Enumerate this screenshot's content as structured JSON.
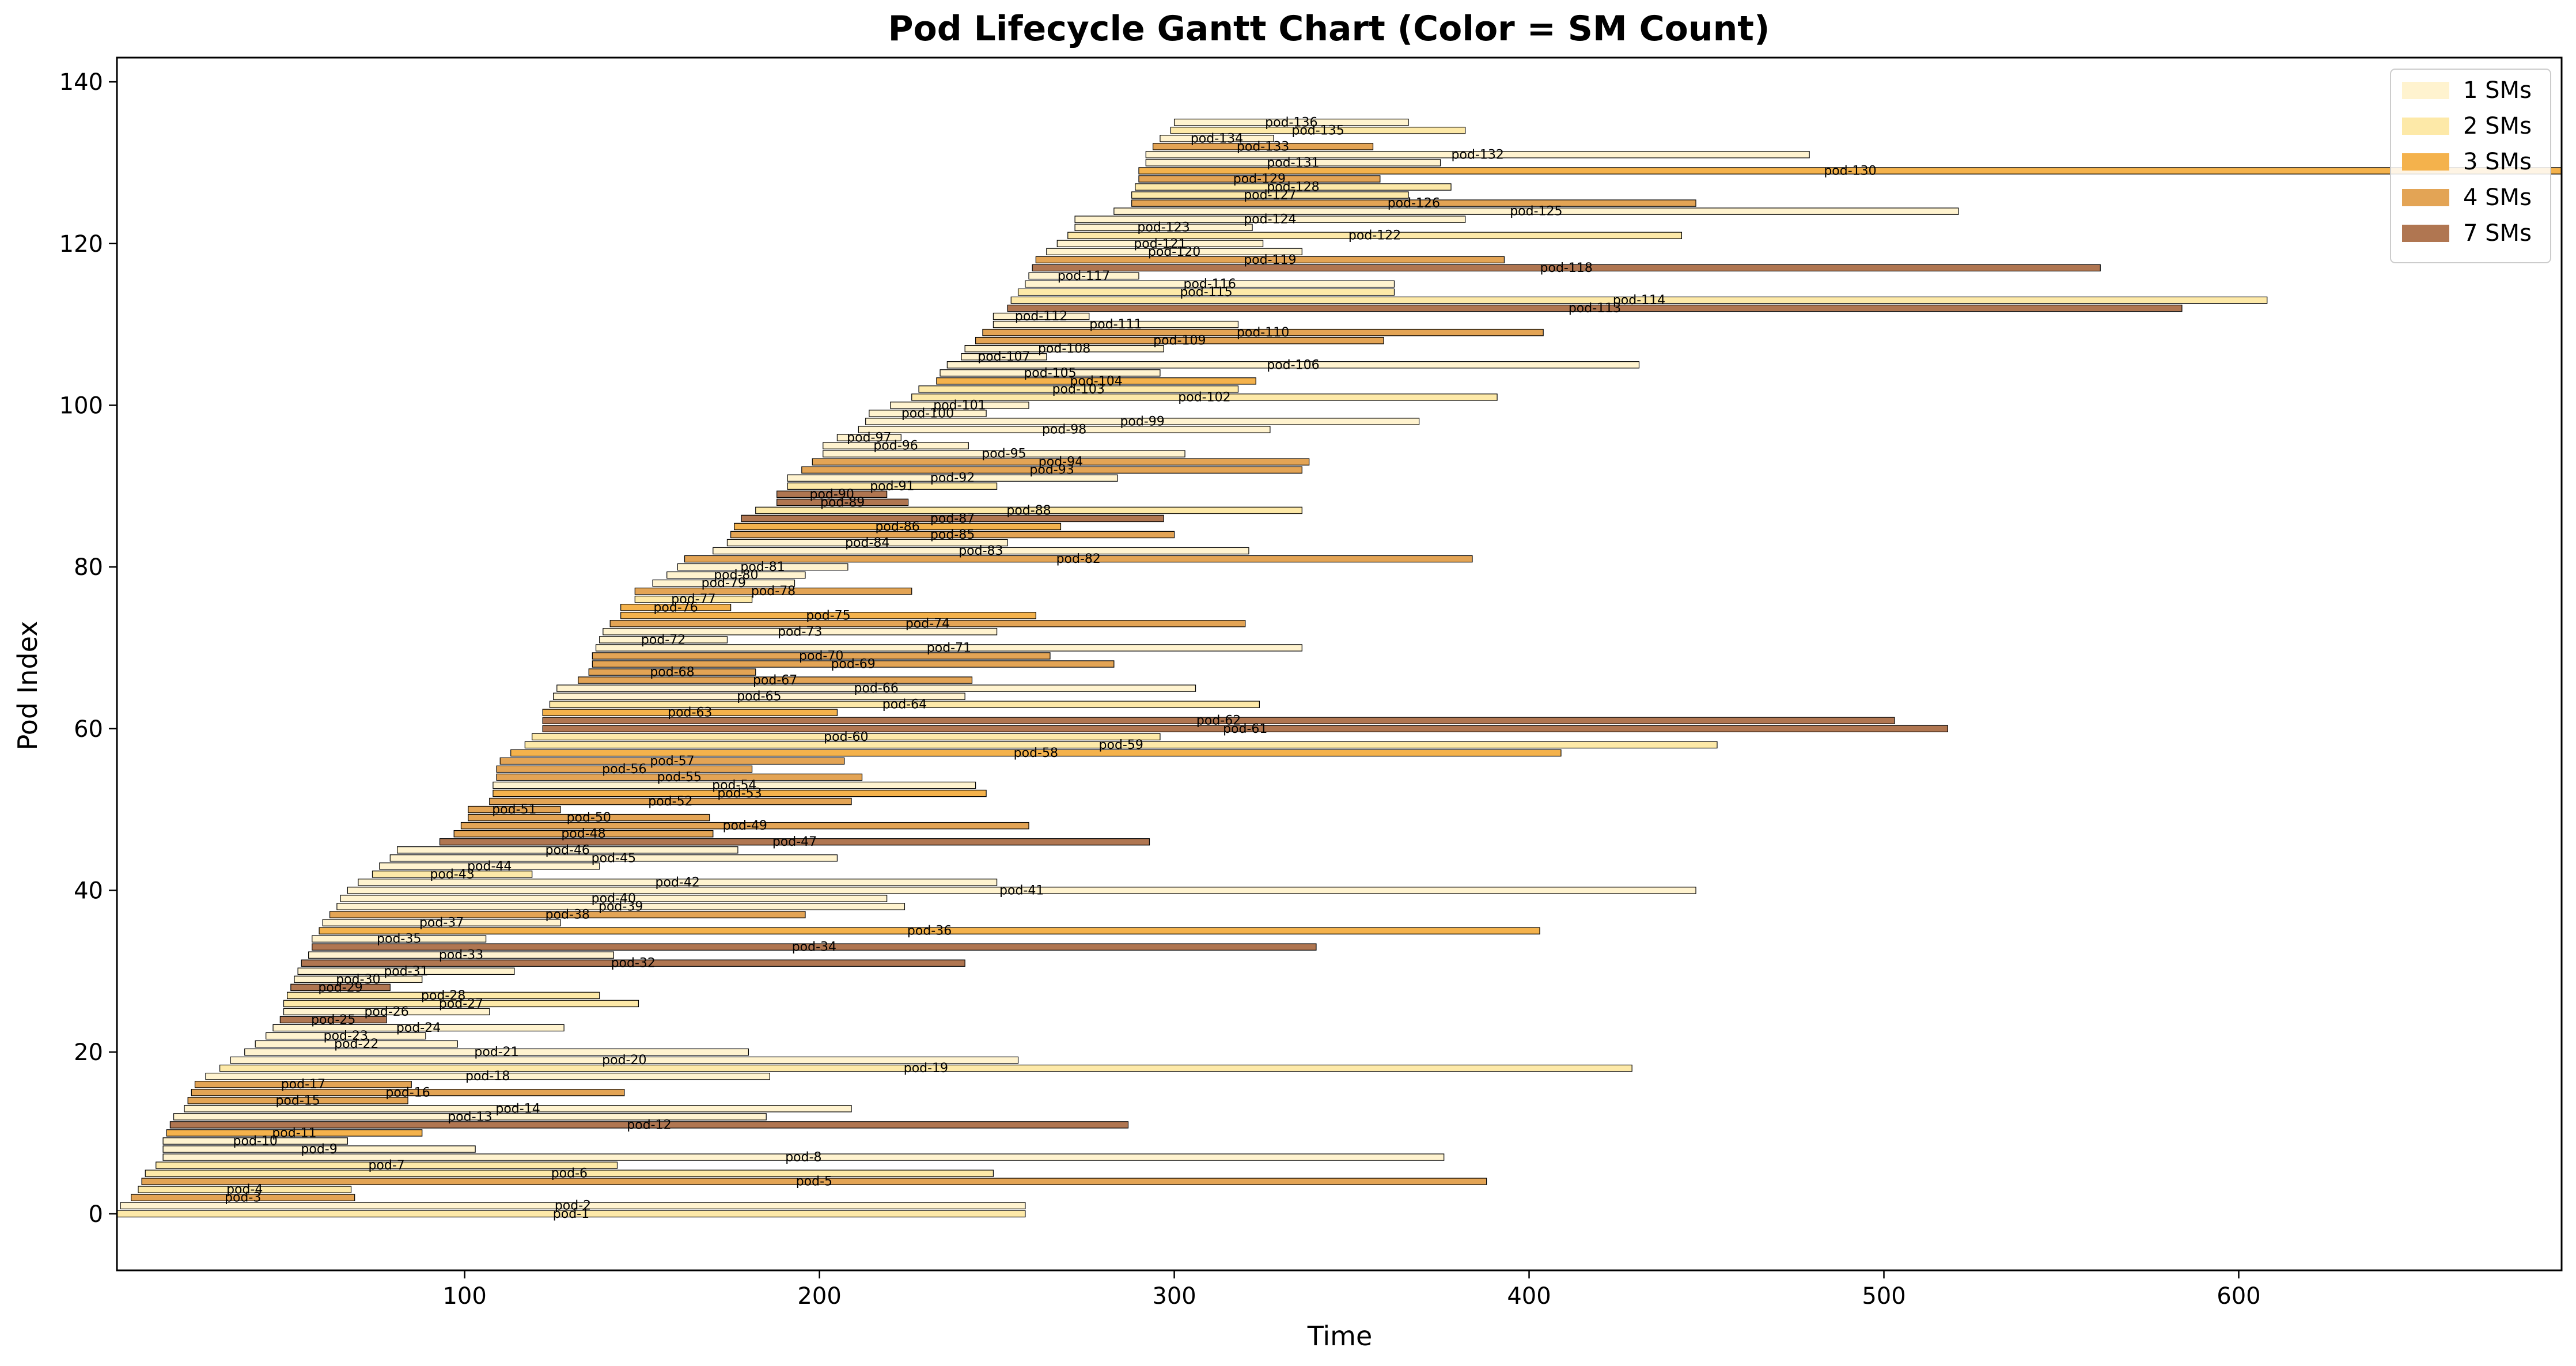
{
  "chart_data": {
    "type": "gantt",
    "title": "Pod Lifecycle Gantt Chart (Color = SM Count)",
    "xlabel": "Time",
    "ylabel": "Pod Index",
    "xlim": [
      2,
      691
    ],
    "ylim": [
      -7,
      143
    ],
    "xticks": [
      100,
      200,
      300,
      400,
      500,
      600
    ],
    "yticks": [
      0,
      20,
      40,
      60,
      80,
      100,
      120,
      140
    ],
    "grid": false,
    "legend_position": "top-right",
    "legend": [
      {
        "label": "1 SMs",
        "sm": 1,
        "color": "#fff3cf"
      },
      {
        "label": "2 SMs",
        "sm": 2,
        "color": "#fde9a8"
      },
      {
        "label": "3 SMs",
        "sm": 3,
        "color": "#f4b24c"
      },
      {
        "label": "4 SMs",
        "sm": 4,
        "color": "#e3a455"
      },
      {
        "label": "7 SMs",
        "sm": 7,
        "color": "#b07651"
      }
    ],
    "pods": [
      {
        "label": "pod-1",
        "start": 2,
        "end": 258,
        "sm": 2
      },
      {
        "label": "pod-2",
        "start": 3,
        "end": 258,
        "sm": 1
      },
      {
        "label": "pod-3",
        "start": 6,
        "end": 69,
        "sm": 4
      },
      {
        "label": "pod-4",
        "start": 8,
        "end": 68,
        "sm": 2
      },
      {
        "label": "pod-5",
        "start": 9,
        "end": 388,
        "sm": 4
      },
      {
        "label": "pod-6",
        "start": 10,
        "end": 249,
        "sm": 2
      },
      {
        "label": "pod-7",
        "start": 13,
        "end": 143,
        "sm": 2
      },
      {
        "label": "pod-8",
        "start": 15,
        "end": 376,
        "sm": 1
      },
      {
        "label": "pod-9",
        "start": 15,
        "end": 103,
        "sm": 1
      },
      {
        "label": "pod-10",
        "start": 15,
        "end": 67,
        "sm": 1
      },
      {
        "label": "pod-11",
        "start": 16,
        "end": 88,
        "sm": 3
      },
      {
        "label": "pod-12",
        "start": 17,
        "end": 287,
        "sm": 7
      },
      {
        "label": "pod-13",
        "start": 18,
        "end": 185,
        "sm": 1
      },
      {
        "label": "pod-14",
        "start": 21,
        "end": 209,
        "sm": 1
      },
      {
        "label": "pod-15",
        "start": 22,
        "end": 84,
        "sm": 4
      },
      {
        "label": "pod-16",
        "start": 23,
        "end": 145,
        "sm": 4
      },
      {
        "label": "pod-17",
        "start": 24,
        "end": 85,
        "sm": 4
      },
      {
        "label": "pod-18",
        "start": 27,
        "end": 186,
        "sm": 1
      },
      {
        "label": "pod-19",
        "start": 31,
        "end": 429,
        "sm": 2
      },
      {
        "label": "pod-20",
        "start": 34,
        "end": 256,
        "sm": 1
      },
      {
        "label": "pod-21",
        "start": 38,
        "end": 180,
        "sm": 1
      },
      {
        "label": "pod-22",
        "start": 41,
        "end": 98,
        "sm": 1
      },
      {
        "label": "pod-23",
        "start": 44,
        "end": 89,
        "sm": 1
      },
      {
        "label": "pod-24",
        "start": 46,
        "end": 128,
        "sm": 1
      },
      {
        "label": "pod-25",
        "start": 48,
        "end": 78,
        "sm": 7
      },
      {
        "label": "pod-26",
        "start": 49,
        "end": 107,
        "sm": 1
      },
      {
        "label": "pod-27",
        "start": 49,
        "end": 149,
        "sm": 2
      },
      {
        "label": "pod-28",
        "start": 50,
        "end": 138,
        "sm": 2
      },
      {
        "label": "pod-29",
        "start": 51,
        "end": 79,
        "sm": 7
      },
      {
        "label": "pod-30",
        "start": 52,
        "end": 88,
        "sm": 1
      },
      {
        "label": "pod-31",
        "start": 53,
        "end": 114,
        "sm": 1
      },
      {
        "label": "pod-32",
        "start": 54,
        "end": 241,
        "sm": 7
      },
      {
        "label": "pod-33",
        "start": 56,
        "end": 142,
        "sm": 1
      },
      {
        "label": "pod-34",
        "start": 57,
        "end": 340,
        "sm": 7
      },
      {
        "label": "pod-35",
        "start": 57,
        "end": 106,
        "sm": 1
      },
      {
        "label": "pod-36",
        "start": 59,
        "end": 403,
        "sm": 3
      },
      {
        "label": "pod-37",
        "start": 60,
        "end": 127,
        "sm": 1
      },
      {
        "label": "pod-38",
        "start": 62,
        "end": 196,
        "sm": 4
      },
      {
        "label": "pod-39",
        "start": 64,
        "end": 224,
        "sm": 1
      },
      {
        "label": "pod-40",
        "start": 65,
        "end": 219,
        "sm": 1
      },
      {
        "label": "pod-41",
        "start": 67,
        "end": 447,
        "sm": 1
      },
      {
        "label": "pod-42",
        "start": 70,
        "end": 250,
        "sm": 1
      },
      {
        "label": "pod-43",
        "start": 74,
        "end": 119,
        "sm": 2
      },
      {
        "label": "pod-44",
        "start": 76,
        "end": 138,
        "sm": 1
      },
      {
        "label": "pod-45",
        "start": 79,
        "end": 205,
        "sm": 1
      },
      {
        "label": "pod-46",
        "start": 81,
        "end": 177,
        "sm": 1
      },
      {
        "label": "pod-47",
        "start": 93,
        "end": 293,
        "sm": 7
      },
      {
        "label": "pod-48",
        "start": 97,
        "end": 170,
        "sm": 4
      },
      {
        "label": "pod-49",
        "start": 99,
        "end": 259,
        "sm": 4
      },
      {
        "label": "pod-50",
        "start": 101,
        "end": 169,
        "sm": 4
      },
      {
        "label": "pod-51",
        "start": 101,
        "end": 127,
        "sm": 4
      },
      {
        "label": "pod-52",
        "start": 107,
        "end": 209,
        "sm": 4
      },
      {
        "label": "pod-53",
        "start": 108,
        "end": 247,
        "sm": 3
      },
      {
        "label": "pod-54",
        "start": 108,
        "end": 244,
        "sm": 1
      },
      {
        "label": "pod-55",
        "start": 109,
        "end": 212,
        "sm": 4
      },
      {
        "label": "pod-56",
        "start": 109,
        "end": 181,
        "sm": 4
      },
      {
        "label": "pod-57",
        "start": 110,
        "end": 207,
        "sm": 4
      },
      {
        "label": "pod-58",
        "start": 113,
        "end": 409,
        "sm": 3
      },
      {
        "label": "pod-59",
        "start": 117,
        "end": 453,
        "sm": 2
      },
      {
        "label": "pod-60",
        "start": 119,
        "end": 296,
        "sm": 2
      },
      {
        "label": "pod-61",
        "start": 122,
        "end": 518,
        "sm": 7
      },
      {
        "label": "pod-62",
        "start": 122,
        "end": 503,
        "sm": 7
      },
      {
        "label": "pod-63",
        "start": 122,
        "end": 205,
        "sm": 3
      },
      {
        "label": "pod-64",
        "start": 124,
        "end": 324,
        "sm": 2
      },
      {
        "label": "pod-65",
        "start": 125,
        "end": 241,
        "sm": 1
      },
      {
        "label": "pod-66",
        "start": 126,
        "end": 306,
        "sm": 1
      },
      {
        "label": "pod-67",
        "start": 132,
        "end": 243,
        "sm": 4
      },
      {
        "label": "pod-68",
        "start": 135,
        "end": 182,
        "sm": 4
      },
      {
        "label": "pod-69",
        "start": 136,
        "end": 283,
        "sm": 4
      },
      {
        "label": "pod-70",
        "start": 136,
        "end": 265,
        "sm": 4
      },
      {
        "label": "pod-71",
        "start": 137,
        "end": 336,
        "sm": 1
      },
      {
        "label": "pod-72",
        "start": 138,
        "end": 174,
        "sm": 1
      },
      {
        "label": "pod-73",
        "start": 139,
        "end": 250,
        "sm": 1
      },
      {
        "label": "pod-74",
        "start": 141,
        "end": 320,
        "sm": 4
      },
      {
        "label": "pod-75",
        "start": 144,
        "end": 261,
        "sm": 3
      },
      {
        "label": "pod-76",
        "start": 144,
        "end": 175,
        "sm": 3
      },
      {
        "label": "pod-77",
        "start": 148,
        "end": 181,
        "sm": 2
      },
      {
        "label": "pod-78",
        "start": 148,
        "end": 226,
        "sm": 4
      },
      {
        "label": "pod-79",
        "start": 153,
        "end": 193,
        "sm": 1
      },
      {
        "label": "pod-80",
        "start": 157,
        "end": 196,
        "sm": 1
      },
      {
        "label": "pod-81",
        "start": 160,
        "end": 208,
        "sm": 1
      },
      {
        "label": "pod-82",
        "start": 162,
        "end": 384,
        "sm": 4
      },
      {
        "label": "pod-83",
        "start": 170,
        "end": 321,
        "sm": 1
      },
      {
        "label": "pod-84",
        "start": 174,
        "end": 253,
        "sm": 1
      },
      {
        "label": "pod-85",
        "start": 175,
        "end": 300,
        "sm": 4
      },
      {
        "label": "pod-86",
        "start": 176,
        "end": 268,
        "sm": 3
      },
      {
        "label": "pod-87",
        "start": 178,
        "end": 297,
        "sm": 7
      },
      {
        "label": "pod-88",
        "start": 182,
        "end": 336,
        "sm": 2
      },
      {
        "label": "pod-89",
        "start": 188,
        "end": 225,
        "sm": 7
      },
      {
        "label": "pod-90",
        "start": 188,
        "end": 219,
        "sm": 7
      },
      {
        "label": "pod-91",
        "start": 191,
        "end": 250,
        "sm": 2
      },
      {
        "label": "pod-92",
        "start": 191,
        "end": 284,
        "sm": 1
      },
      {
        "label": "pod-93",
        "start": 195,
        "end": 336,
        "sm": 4
      },
      {
        "label": "pod-94",
        "start": 198,
        "end": 338,
        "sm": 4
      },
      {
        "label": "pod-95",
        "start": 201,
        "end": 303,
        "sm": 1
      },
      {
        "label": "pod-96",
        "start": 201,
        "end": 242,
        "sm": 1
      },
      {
        "label": "pod-97",
        "start": 205,
        "end": 223,
        "sm": 1
      },
      {
        "label": "pod-98",
        "start": 211,
        "end": 327,
        "sm": 1
      },
      {
        "label": "pod-99",
        "start": 213,
        "end": 369,
        "sm": 1
      },
      {
        "label": "pod-100",
        "start": 214,
        "end": 247,
        "sm": 1
      },
      {
        "label": "pod-101",
        "start": 220,
        "end": 259,
        "sm": 1
      },
      {
        "label": "pod-102",
        "start": 226,
        "end": 391,
        "sm": 2
      },
      {
        "label": "pod-103",
        "start": 228,
        "end": 318,
        "sm": 2
      },
      {
        "label": "pod-104",
        "start": 233,
        "end": 323,
        "sm": 3
      },
      {
        "label": "pod-105",
        "start": 234,
        "end": 296,
        "sm": 1
      },
      {
        "label": "pod-106",
        "start": 236,
        "end": 431,
        "sm": 1
      },
      {
        "label": "pod-107",
        "start": 240,
        "end": 264,
        "sm": 1
      },
      {
        "label": "pod-108",
        "start": 241,
        "end": 297,
        "sm": 1
      },
      {
        "label": "pod-109",
        "start": 244,
        "end": 359,
        "sm": 4
      },
      {
        "label": "pod-110",
        "start": 246,
        "end": 404,
        "sm": 4
      },
      {
        "label": "pod-111",
        "start": 249,
        "end": 318,
        "sm": 1
      },
      {
        "label": "pod-112",
        "start": 249,
        "end": 276,
        "sm": 1
      },
      {
        "label": "pod-113",
        "start": 253,
        "end": 584,
        "sm": 7
      },
      {
        "label": "pod-114",
        "start": 254,
        "end": 608,
        "sm": 2
      },
      {
        "label": "pod-115",
        "start": 256,
        "end": 362,
        "sm": 2
      },
      {
        "label": "pod-116",
        "start": 258,
        "end": 362,
        "sm": 1
      },
      {
        "label": "pod-117",
        "start": 259,
        "end": 290,
        "sm": 1
      },
      {
        "label": "pod-118",
        "start": 260,
        "end": 561,
        "sm": 7
      },
      {
        "label": "pod-119",
        "start": 261,
        "end": 393,
        "sm": 4
      },
      {
        "label": "pod-120",
        "start": 264,
        "end": 336,
        "sm": 1
      },
      {
        "label": "pod-121",
        "start": 267,
        "end": 325,
        "sm": 1
      },
      {
        "label": "pod-122",
        "start": 270,
        "end": 443,
        "sm": 2
      },
      {
        "label": "pod-123",
        "start": 272,
        "end": 322,
        "sm": 1
      },
      {
        "label": "pod-124",
        "start": 272,
        "end": 382,
        "sm": 1
      },
      {
        "label": "pod-125",
        "start": 283,
        "end": 521,
        "sm": 1
      },
      {
        "label": "pod-126",
        "start": 288,
        "end": 447,
        "sm": 4
      },
      {
        "label": "pod-127",
        "start": 288,
        "end": 366,
        "sm": 2
      },
      {
        "label": "pod-128",
        "start": 289,
        "end": 378,
        "sm": 2
      },
      {
        "label": "pod-129",
        "start": 290,
        "end": 358,
        "sm": 4
      },
      {
        "label": "pod-130",
        "start": 290,
        "end": 691,
        "sm": 3
      },
      {
        "label": "pod-131",
        "start": 292,
        "end": 375,
        "sm": 1
      },
      {
        "label": "pod-132",
        "start": 292,
        "end": 479,
        "sm": 1
      },
      {
        "label": "pod-133",
        "start": 294,
        "end": 356,
        "sm": 4
      },
      {
        "label": "pod-134",
        "start": 296,
        "end": 328,
        "sm": 1
      },
      {
        "label": "pod-135",
        "start": 299,
        "end": 382,
        "sm": 2
      },
      {
        "label": "pod-136",
        "start": 300,
        "end": 366,
        "sm": 1
      }
    ]
  }
}
